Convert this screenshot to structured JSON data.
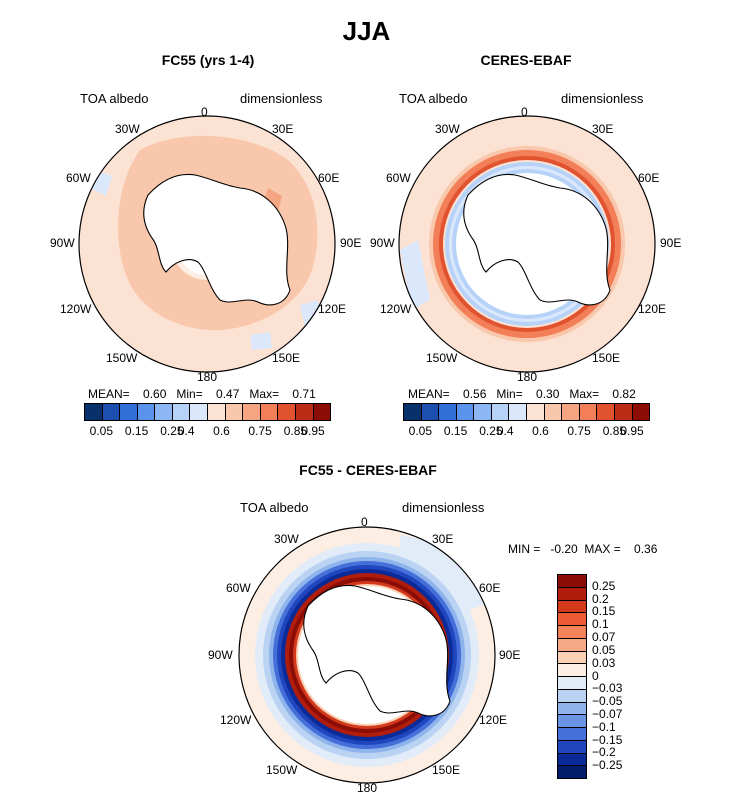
{
  "figure_title": "JJA",
  "panels": [
    {
      "title": "FC55 (yrs 1-4)",
      "left_label": "TOA albedo",
      "right_label": "dimensionless",
      "stats": "MEAN=    0.60   Min=    0.47   Max=    0.71",
      "legend_ticks": [
        "0.05",
        "0.15",
        "0.25",
        "0.4",
        "0.6",
        "0.75",
        "0.85",
        "0.95"
      ]
    },
    {
      "title": "CERES-EBAF",
      "left_label": "TOA albedo",
      "right_label": "dimensionless",
      "stats": "MEAN=    0.56   Min=    0.30   Max=    0.82",
      "legend_ticks": [
        "0.05",
        "0.15",
        "0.25",
        "0.4",
        "0.6",
        "0.75",
        "0.85",
        "0.95"
      ]
    },
    {
      "title": "FC55 - CERES-EBAF",
      "left_label": "TOA albedo",
      "right_label": "dimensionless",
      "stats": "MIN =   -0.20  MAX =    0.36",
      "legend_ticks": [
        "0.25",
        "0.2",
        "0.15",
        "0.1",
        "0.07",
        "0.05",
        "0.03",
        "0",
        "−0.03",
        "−0.05",
        "−0.07",
        "−0.1",
        "−0.15",
        "−0.2",
        "−0.25"
      ]
    }
  ],
  "lon_labels": {
    "n0": "0",
    "n30e": "30E",
    "n60e": "60E",
    "n90e": "90E",
    "n120e": "120E",
    "n150e": "150E",
    "n180": "180",
    "n150w": "150W",
    "n120w": "120W",
    "n90w": "90W",
    "n60w": "60W",
    "n30w": "30W"
  },
  "colors": {
    "abs_scale": [
      "#08306b",
      "#1c4fb0",
      "#2f6fd6",
      "#5a93ec",
      "#8cb6f4",
      "#b7d2f8",
      "#dbe8fb",
      "#fbe2d3",
      "#f9c8ac",
      "#f6a582",
      "#f27f57",
      "#e1522f",
      "#bb2c17",
      "#8b0d05"
    ],
    "diff_scale": [
      "#8b0d05",
      "#b11d0c",
      "#d33a1c",
      "#ec5b33",
      "#f4825a",
      "#f7a987",
      "#fbd0b5",
      "#fdeee4",
      "#e2ecf9",
      "#bad3f3",
      "#8fb4ec",
      "#6b94e4",
      "#4670d9",
      "#2046bd",
      "#0a2a97",
      "#051c6c"
    ],
    "land": "#ffffff",
    "coast": "#000000"
  }
}
